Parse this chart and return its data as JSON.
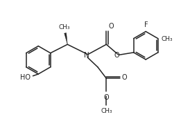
{
  "bg_color": "#ffffff",
  "line_color": "#222222",
  "line_width": 1.1,
  "font_size": 7.0,
  "ring_r": 0.52,
  "xlim": [
    -3.2,
    3.8
  ],
  "ylim": [
    -2.2,
    2.0
  ],
  "figsize": [
    2.74,
    1.72
  ],
  "dpi": 100
}
